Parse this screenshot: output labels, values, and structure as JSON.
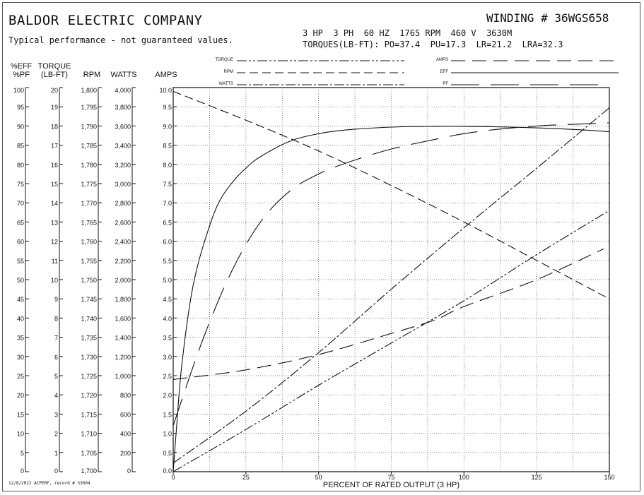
{
  "header": {
    "company": "BALDOR ELECTRIC COMPANY",
    "disclaimer": "Typical performance - not guaranteed values.",
    "winding": "WINDING # 36WGS658",
    "specs": "3 HP  3 PH  60 HZ  1765 RPM  460 V  3630M",
    "torques": "TORQUES(LB-FT): PO=37.4  PU=17.3  LR=21.2  LRA=32.3"
  },
  "footer": "12/8/2022 ACPERF, record # 33604",
  "colors": {
    "ink": "#111111",
    "grid": "#555555"
  },
  "chart_data": {
    "type": "line",
    "xlabel": "PERCENT OF RATED OUTPUT (3 HP)",
    "x_ticks": [
      "0",
      "25",
      "50",
      "75",
      "100",
      "125",
      "150"
    ],
    "xlim": [
      0,
      150
    ],
    "grid": true,
    "legend_placement": "top",
    "legend": [
      {
        "label": "TORQUE",
        "dash": "14 3 3 3 3 3"
      },
      {
        "label": "RPM",
        "dash": "12 6"
      },
      {
        "label": "WATTS",
        "dash": "14 3 3 3"
      },
      {
        "label": "AMPS",
        "dash": "20 10"
      },
      {
        "label": "EFF",
        "dash": ""
      },
      {
        "label": "PF",
        "dash": "40 16"
      }
    ],
    "axes": [
      {
        "header": [
          "%EFF",
          "%PF"
        ],
        "ticks": [
          "0",
          "5",
          "10",
          "15",
          "20",
          "25",
          "30",
          "35",
          "40",
          "45",
          "50",
          "55",
          "60",
          "65",
          "70",
          "75",
          "80",
          "85",
          "90",
          "95",
          "100"
        ],
        "range": [
          0,
          100
        ]
      },
      {
        "header": [
          "TORQUE",
          "(LB-FT)"
        ],
        "ticks": [
          "0",
          "1",
          "2",
          "3",
          "4",
          "5",
          "6",
          "7",
          "8",
          "9",
          "10",
          "11",
          "12",
          "13",
          "14",
          "15",
          "16",
          "17",
          "18",
          "19",
          "20"
        ],
        "range": [
          0,
          20
        ]
      },
      {
        "header": [
          "",
          "RPM"
        ],
        "ticks": [
          "1,700",
          "1,705",
          "1,710",
          "1,715",
          "1,720",
          "1,725",
          "1,730",
          "1,735",
          "1,740",
          "1,745",
          "1,750",
          "1,755",
          "1,760",
          "1,765",
          "1,770",
          "1,775",
          "1,780",
          "1,785",
          "1,790",
          "1,795",
          "1,800"
        ],
        "range": [
          1700,
          1800
        ]
      },
      {
        "header": [
          "",
          "WATTS"
        ],
        "ticks": [
          "0",
          "200",
          "400",
          "600",
          "800",
          "1,000",
          "1,200",
          "1,400",
          "1,600",
          "1,800",
          "2,000",
          "2,200",
          "2,400",
          "2,600",
          "2,800",
          "3,000",
          "3,200",
          "3,400",
          "3,600",
          "3,800",
          "4,000"
        ],
        "range": [
          0,
          4000
        ]
      },
      {
        "header": [
          "",
          "AMPS"
        ],
        "ticks": [
          "0.0",
          "0.5",
          "1.0",
          "1.5",
          "2.0",
          "2.5",
          "3.0",
          "3.5",
          "4.0",
          "4.5",
          "5.0",
          "5.5",
          "6.0",
          "6.5",
          "7.0",
          "7.5",
          "8.0",
          "8.5",
          "9.0",
          "9.5",
          "10.0"
        ],
        "range": [
          0,
          10
        ]
      }
    ],
    "series": [
      {
        "name": "EFF",
        "unit": "%",
        "dash": "",
        "x": [
          0,
          1,
          2,
          3,
          5,
          7,
          10,
          15,
          20,
          25,
          30,
          40,
          50,
          60,
          75,
          90,
          100,
          110,
          125,
          140,
          150
        ],
        "y": [
          0,
          10,
          20,
          28,
          40,
          49,
          58,
          69,
          75,
          79,
          82,
          86,
          88,
          89,
          89.7,
          89.9,
          89.9,
          89.8,
          89.5,
          89,
          88.5
        ]
      },
      {
        "name": "PF",
        "unit": "%",
        "dash": "40 16",
        "x": [
          0,
          10,
          20,
          30,
          40,
          50,
          60,
          75,
          90,
          100,
          110,
          125,
          140,
          150
        ],
        "y": [
          12,
          34,
          52,
          65,
          73,
          77.5,
          80.5,
          84,
          86.5,
          88,
          89,
          90,
          90.5,
          90.8
        ]
      },
      {
        "name": "TORQUE",
        "unit": "lb-ft",
        "dash": "14 3 3 3 3 3",
        "x": [
          0,
          25,
          50,
          75,
          100,
          125,
          150
        ],
        "y": [
          0,
          2.2,
          4.5,
          6.7,
          8.9,
          11.3,
          13.6
        ]
      },
      {
        "name": "RPM",
        "unit": "rpm",
        "dash": "12 6",
        "x": [
          0,
          25,
          50,
          75,
          100,
          125,
          150
        ],
        "y": [
          1799,
          1791.5,
          1783.5,
          1774.5,
          1765,
          1755,
          1745
        ]
      },
      {
        "name": "WATTS",
        "unit": "W",
        "dash": "14 3 3 3",
        "x": [
          0,
          25,
          50,
          75,
          100,
          125,
          150
        ],
        "y": [
          90,
          630,
          1240,
          1900,
          2540,
          3160,
          3790
        ]
      },
      {
        "name": "AMPS",
        "unit": "A",
        "dash": "20 10",
        "x": [
          0,
          25,
          50,
          75,
          90,
          100,
          125,
          148
        ],
        "y": [
          2.4,
          2.65,
          3.05,
          3.6,
          3.95,
          4.3,
          5.0,
          5.8
        ]
      }
    ]
  }
}
